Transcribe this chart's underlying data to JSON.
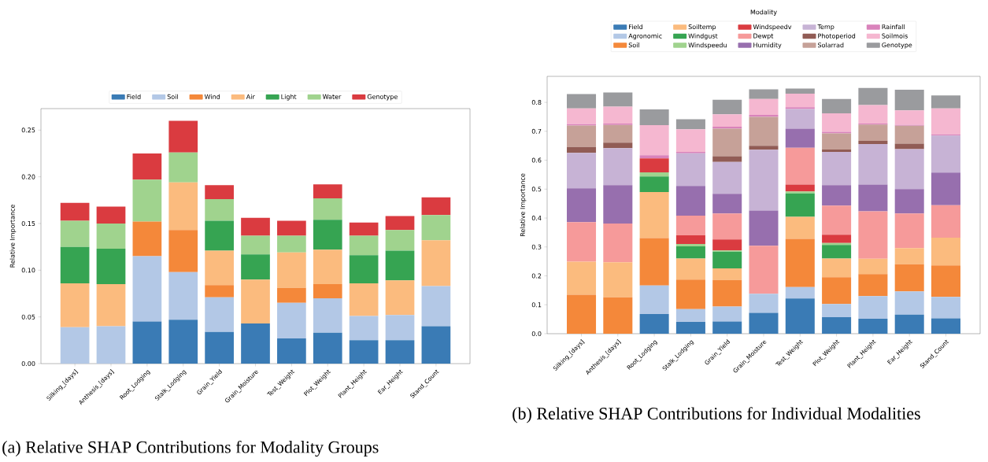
{
  "chart_data": [
    {
      "type": "bar",
      "stacked": true,
      "ylabel": "Relative Importance",
      "legend": "top",
      "categories": [
        "Silking_[days]",
        "Anthesis_[days]",
        "Root_Lodging",
        "Stalk_Lodging",
        "Grain_Yield",
        "Grain_Moisture",
        "Test_Weight",
        "Plot_Weight",
        "Plant_Height",
        "Ear_Height",
        "Stand_Count"
      ],
      "ylim": [
        0,
        0.273
      ],
      "yticks": [
        {
          "value": 0,
          "label": "0.00"
        },
        0.05,
        {
          "value": 0.1,
          "label": "0.10"
        },
        0.15,
        {
          "value": 0.2,
          "label": "0.20"
        },
        0.25
      ],
      "series": [
        {
          "name": "Field",
          "color": "#3a7bb5",
          "values": [
            0,
            0,
            0.045,
            0.047,
            0.034,
            0.043,
            0.027,
            0.033,
            0.025,
            0.025,
            0.04
          ]
        },
        {
          "name": "Soil",
          "color": "#b3c8e6",
          "values": [
            0.039,
            0.04,
            0.07,
            0.051,
            0.037,
            0,
            0.038,
            0.037,
            0.026,
            0.027,
            0.043
          ]
        },
        {
          "name": "Wind",
          "color": "#f4883a",
          "values": [
            0,
            0,
            0.037,
            0.045,
            0.013,
            0,
            0.016,
            0.015,
            0,
            0,
            0
          ]
        },
        {
          "name": "Air",
          "color": "#fbbb7e",
          "values": [
            0.047,
            0.045,
            0,
            0.051,
            0.037,
            0.047,
            0.038,
            0.037,
            0.035,
            0.037,
            0.049
          ]
        },
        {
          "name": "Light",
          "color": "#36a452",
          "values": [
            0.039,
            0.038,
            0,
            0,
            0.032,
            0.027,
            0,
            0.032,
            0.03,
            0.032,
            0
          ]
        },
        {
          "name": "Water",
          "color": "#a0d38e",
          "values": [
            0.028,
            0.027,
            0.045,
            0.032,
            0.023,
            0.02,
            0.018,
            0.023,
            0.021,
            0.022,
            0.027
          ]
        },
        {
          "name": "Genotype",
          "color": "#da3b40",
          "values": [
            0.019,
            0.018,
            0.028,
            0.034,
            0.015,
            0.019,
            0.016,
            0.015,
            0.014,
            0.015,
            0.019
          ]
        }
      ],
      "annotations": [
        "(a) Relative SHAP Contributions for Modality Groups"
      ]
    },
    {
      "type": "bar",
      "stacked": true,
      "ylabel": "Relative Importance",
      "legend": "top",
      "legend_title": "Modality",
      "categories": [
        "Silking_[days]",
        "Anthesis_[days]",
        "Root_Lodging",
        "Stalk_Lodging",
        "Grain_Yield",
        "Grain_Moisture",
        "Test_Weight",
        "Plot_Weight",
        "Plant_Height",
        "Ear_Height",
        "Stand_Count"
      ],
      "ylim": [
        0,
        0.89
      ],
      "yticks": [
        {
          "value": 0,
          "label": "0.0"
        },
        0.1,
        0.2,
        0.3,
        0.4,
        0.5,
        0.6,
        0.7,
        0.8
      ],
      "series": [
        {
          "name": "Field",
          "color": "#3a7bb5",
          "values": [
            0,
            0,
            0.068,
            0.041,
            0.042,
            0.072,
            0.122,
            0.057,
            0.052,
            0.066,
            0.053
          ]
        },
        {
          "name": "Agronomic",
          "color": "#b3c8e6",
          "values": [
            0,
            0,
            0.099,
            0.044,
            0.052,
            0.066,
            0.039,
            0.046,
            0.078,
            0.08,
            0.074
          ]
        },
        {
          "name": "Soil",
          "color": "#f4883a",
          "values": [
            0.135,
            0.126,
            0.164,
            0.102,
            0.092,
            0,
            0.167,
            0.092,
            0.076,
            0.094,
            0.109
          ]
        },
        {
          "name": "Soiltemp",
          "color": "#fbbb7e",
          "values": [
            0.114,
            0.121,
            0.159,
            0.073,
            0.04,
            0,
            0.076,
            0.065,
            0.053,
            0.056,
            0.096
          ]
        },
        {
          "name": "Windgust",
          "color": "#36a452",
          "values": [
            0,
            0,
            0.054,
            0.042,
            0.058,
            0,
            0.081,
            0.047,
            0,
            0,
            0
          ]
        },
        {
          "name": "Windspeedu",
          "color": "#a0d38e",
          "values": [
            0,
            0,
            0.014,
            0.008,
            0.004,
            0,
            0.007,
            0.007,
            0,
            0,
            0
          ]
        },
        {
          "name": "Windspeedv",
          "color": "#da3b40",
          "values": [
            0,
            0,
            0.048,
            0.03,
            0.038,
            0,
            0.024,
            0.028,
            0,
            0,
            0
          ]
        },
        {
          "name": "Dewpt",
          "color": "#f69a9a",
          "values": [
            0.137,
            0.134,
            0,
            0.068,
            0.09,
            0.166,
            0.127,
            0.101,
            0.164,
            0.12,
            0.112
          ]
        },
        {
          "name": "Humidity",
          "color": "#976fae",
          "values": [
            0.117,
            0.133,
            0,
            0.103,
            0.068,
            0.122,
            0.066,
            0.071,
            0.093,
            0.084,
            0.113
          ]
        },
        {
          "name": "Temp",
          "color": "#c7b3d5",
          "values": [
            0.122,
            0.128,
            0,
            0.113,
            0.11,
            0.21,
            0.068,
            0.115,
            0.14,
            0.138,
            0.128
          ]
        },
        {
          "name": "Photoperiod",
          "color": "#915c55",
          "values": [
            0.021,
            0.019,
            0,
            0,
            0.02,
            0.014,
            0,
            0.008,
            0.011,
            0.019,
            0
          ]
        },
        {
          "name": "Solarrad",
          "color": "#c6a198",
          "values": [
            0.074,
            0.061,
            0,
            0,
            0.095,
            0.1,
            0,
            0.056,
            0.056,
            0.062,
            0
          ]
        },
        {
          "name": "Rainfall",
          "color": "#d983bb",
          "values": [
            0.005,
            0.005,
            0.011,
            0.005,
            0.007,
            0.007,
            0.006,
            0.005,
            0.004,
            0.003,
            0.004
          ]
        },
        {
          "name": "Soilmois",
          "color": "#f5b7d0",
          "values": [
            0.054,
            0.058,
            0.104,
            0.078,
            0.043,
            0.055,
            0.047,
            0.064,
            0.064,
            0.05,
            0.09
          ]
        },
        {
          "name": "Genotype",
          "color": "#9a9b9e",
          "values": [
            0.05,
            0.049,
            0.055,
            0.035,
            0.05,
            0.033,
            0.018,
            0.05,
            0.059,
            0.072,
            0.045
          ]
        }
      ],
      "annotations": [
        "(b) Relative SHAP Contributions for Individual Modalities"
      ]
    }
  ]
}
